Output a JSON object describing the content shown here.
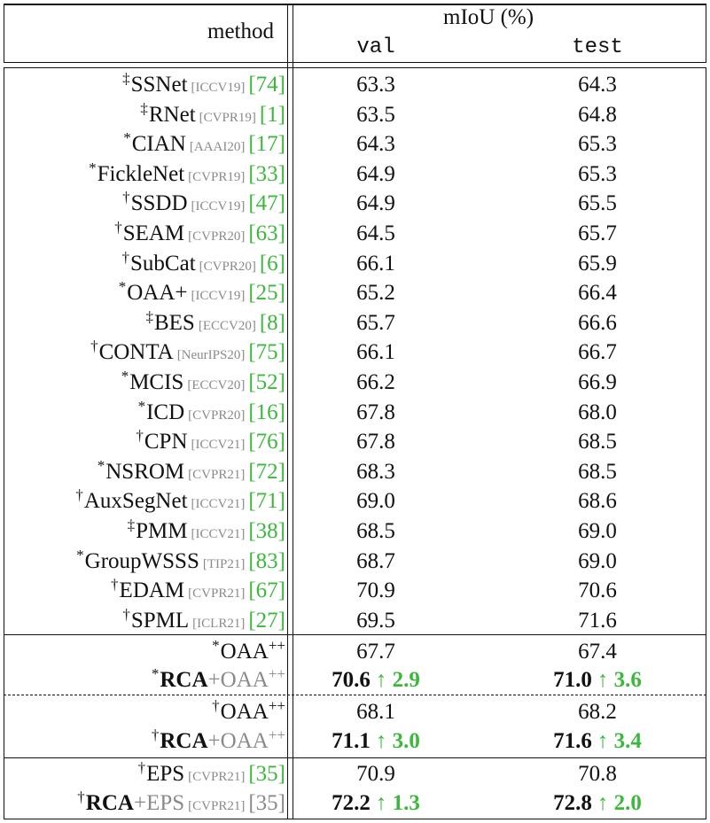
{
  "header": {
    "method_label": "method",
    "metric_label": "mIoU (%)",
    "val_label": "val",
    "test_label": "test"
  },
  "colors": {
    "reference": "#3cb83c",
    "venue": "#8a8a8a",
    "gain": "#3cb83c"
  },
  "rows": [
    {
      "mark": "‡",
      "method": "SSNet",
      "venue": "[ICCV19]",
      "ref": "[74]",
      "val": "63.3",
      "test": "64.3"
    },
    {
      "mark": "‡",
      "method": "RNet",
      "venue": "[CVPR19]",
      "ref": "[1]",
      "val": "63.5",
      "test": "64.8"
    },
    {
      "mark": "*",
      "method": "CIAN",
      "venue": "[AAAI20]",
      "ref": "[17]",
      "val": "64.3",
      "test": "65.3"
    },
    {
      "mark": "*",
      "method": "FickleNet",
      "venue": "[CVPR19]",
      "ref": "[33]",
      "val": "64.9",
      "test": "65.3"
    },
    {
      "mark": "†",
      "method": "SSDD",
      "venue": "[ICCV19]",
      "ref": "[47]",
      "val": "64.9",
      "test": "65.5"
    },
    {
      "mark": "†",
      "method": "SEAM",
      "venue": "[CVPR20]",
      "ref": "[63]",
      "val": "64.5",
      "test": "65.7"
    },
    {
      "mark": "†",
      "method": "SubCat",
      "venue": "[CVPR20]",
      "ref": "[6]",
      "val": "66.1",
      "test": "65.9"
    },
    {
      "mark": "*",
      "method": "OAA+",
      "venue": "[ICCV19]",
      "ref": "[25]",
      "val": "65.2",
      "test": "66.4"
    },
    {
      "mark": "‡",
      "method": "BES",
      "venue": "[ECCV20]",
      "ref": "[8]",
      "val": "65.7",
      "test": "66.6"
    },
    {
      "mark": "†",
      "method": "CONTA",
      "venue": "[NeurIPS20]",
      "ref": "[75]",
      "val": "66.1",
      "test": "66.7"
    },
    {
      "mark": "*",
      "method": "MCIS",
      "venue": "[ECCV20]",
      "ref": "[52]",
      "val": "66.2",
      "test": "66.9"
    },
    {
      "mark": "*",
      "method": "ICD",
      "venue": "[CVPR20]",
      "ref": "[16]",
      "val": "67.8",
      "test": "68.0"
    },
    {
      "mark": "†",
      "method": "CPN",
      "venue": "[ICCV21]",
      "ref": "[76]",
      "val": "67.8",
      "test": "68.5"
    },
    {
      "mark": "*",
      "method": "NSROM",
      "venue": "[CVPR21]",
      "ref": "[72]",
      "val": "68.3",
      "test": "68.5"
    },
    {
      "mark": "†",
      "method": "AuxSegNet",
      "venue": "[ICCV21]",
      "ref": "[71]",
      "val": "69.0",
      "test": "68.6"
    },
    {
      "mark": "‡",
      "method": "PMM",
      "venue": "[ICCV21]",
      "ref": "[38]",
      "val": "68.5",
      "test": "69.0"
    },
    {
      "mark": "*",
      "method": "GroupWSSS",
      "venue": "[TIP21]",
      "ref": "[83]",
      "val": "68.7",
      "test": "69.0"
    },
    {
      "mark": "†",
      "method": "EDAM",
      "venue": "[CVPR21]",
      "ref": "[67]",
      "val": "70.9",
      "test": "70.6"
    },
    {
      "mark": "†",
      "method": "SPML",
      "venue": "[ICLR21]",
      "ref": "[27]",
      "val": "69.5",
      "test": "71.6"
    }
  ],
  "groups": {
    "g1": {
      "base": {
        "mark": "*",
        "method": "OAA",
        "sup": "++",
        "val": "67.7",
        "test": "67.4"
      },
      "ours": {
        "mark": "*",
        "method": "RCA",
        "suffix": "+OAA",
        "sup": "++",
        "val": "70.6",
        "val_gain": "↑ 2.9",
        "test": "71.0",
        "test_gain": "↑ 3.6"
      }
    },
    "g2": {
      "base": {
        "mark": "†",
        "method": "OAA",
        "sup": "++",
        "val": "68.1",
        "test": "68.2"
      },
      "ours": {
        "mark": "†",
        "method": "RCA",
        "suffix": "+OAA",
        "sup": "++",
        "val": "71.1",
        "val_gain": "↑ 3.0",
        "test": "71.6",
        "test_gain": "↑ 3.4"
      }
    },
    "g3": {
      "base": {
        "mark": "†",
        "method": "EPS",
        "venue": "[CVPR21]",
        "ref": "[35]",
        "val": "70.9",
        "test": "70.8"
      },
      "ours": {
        "mark": "†",
        "method": "RCA",
        "suffix": "+EPS",
        "venue": "[CVPR21]",
        "ref": "[35]",
        "val": "72.2",
        "val_gain": "↑ 1.3",
        "test": "72.8",
        "test_gain": "↑ 2.0"
      }
    }
  }
}
